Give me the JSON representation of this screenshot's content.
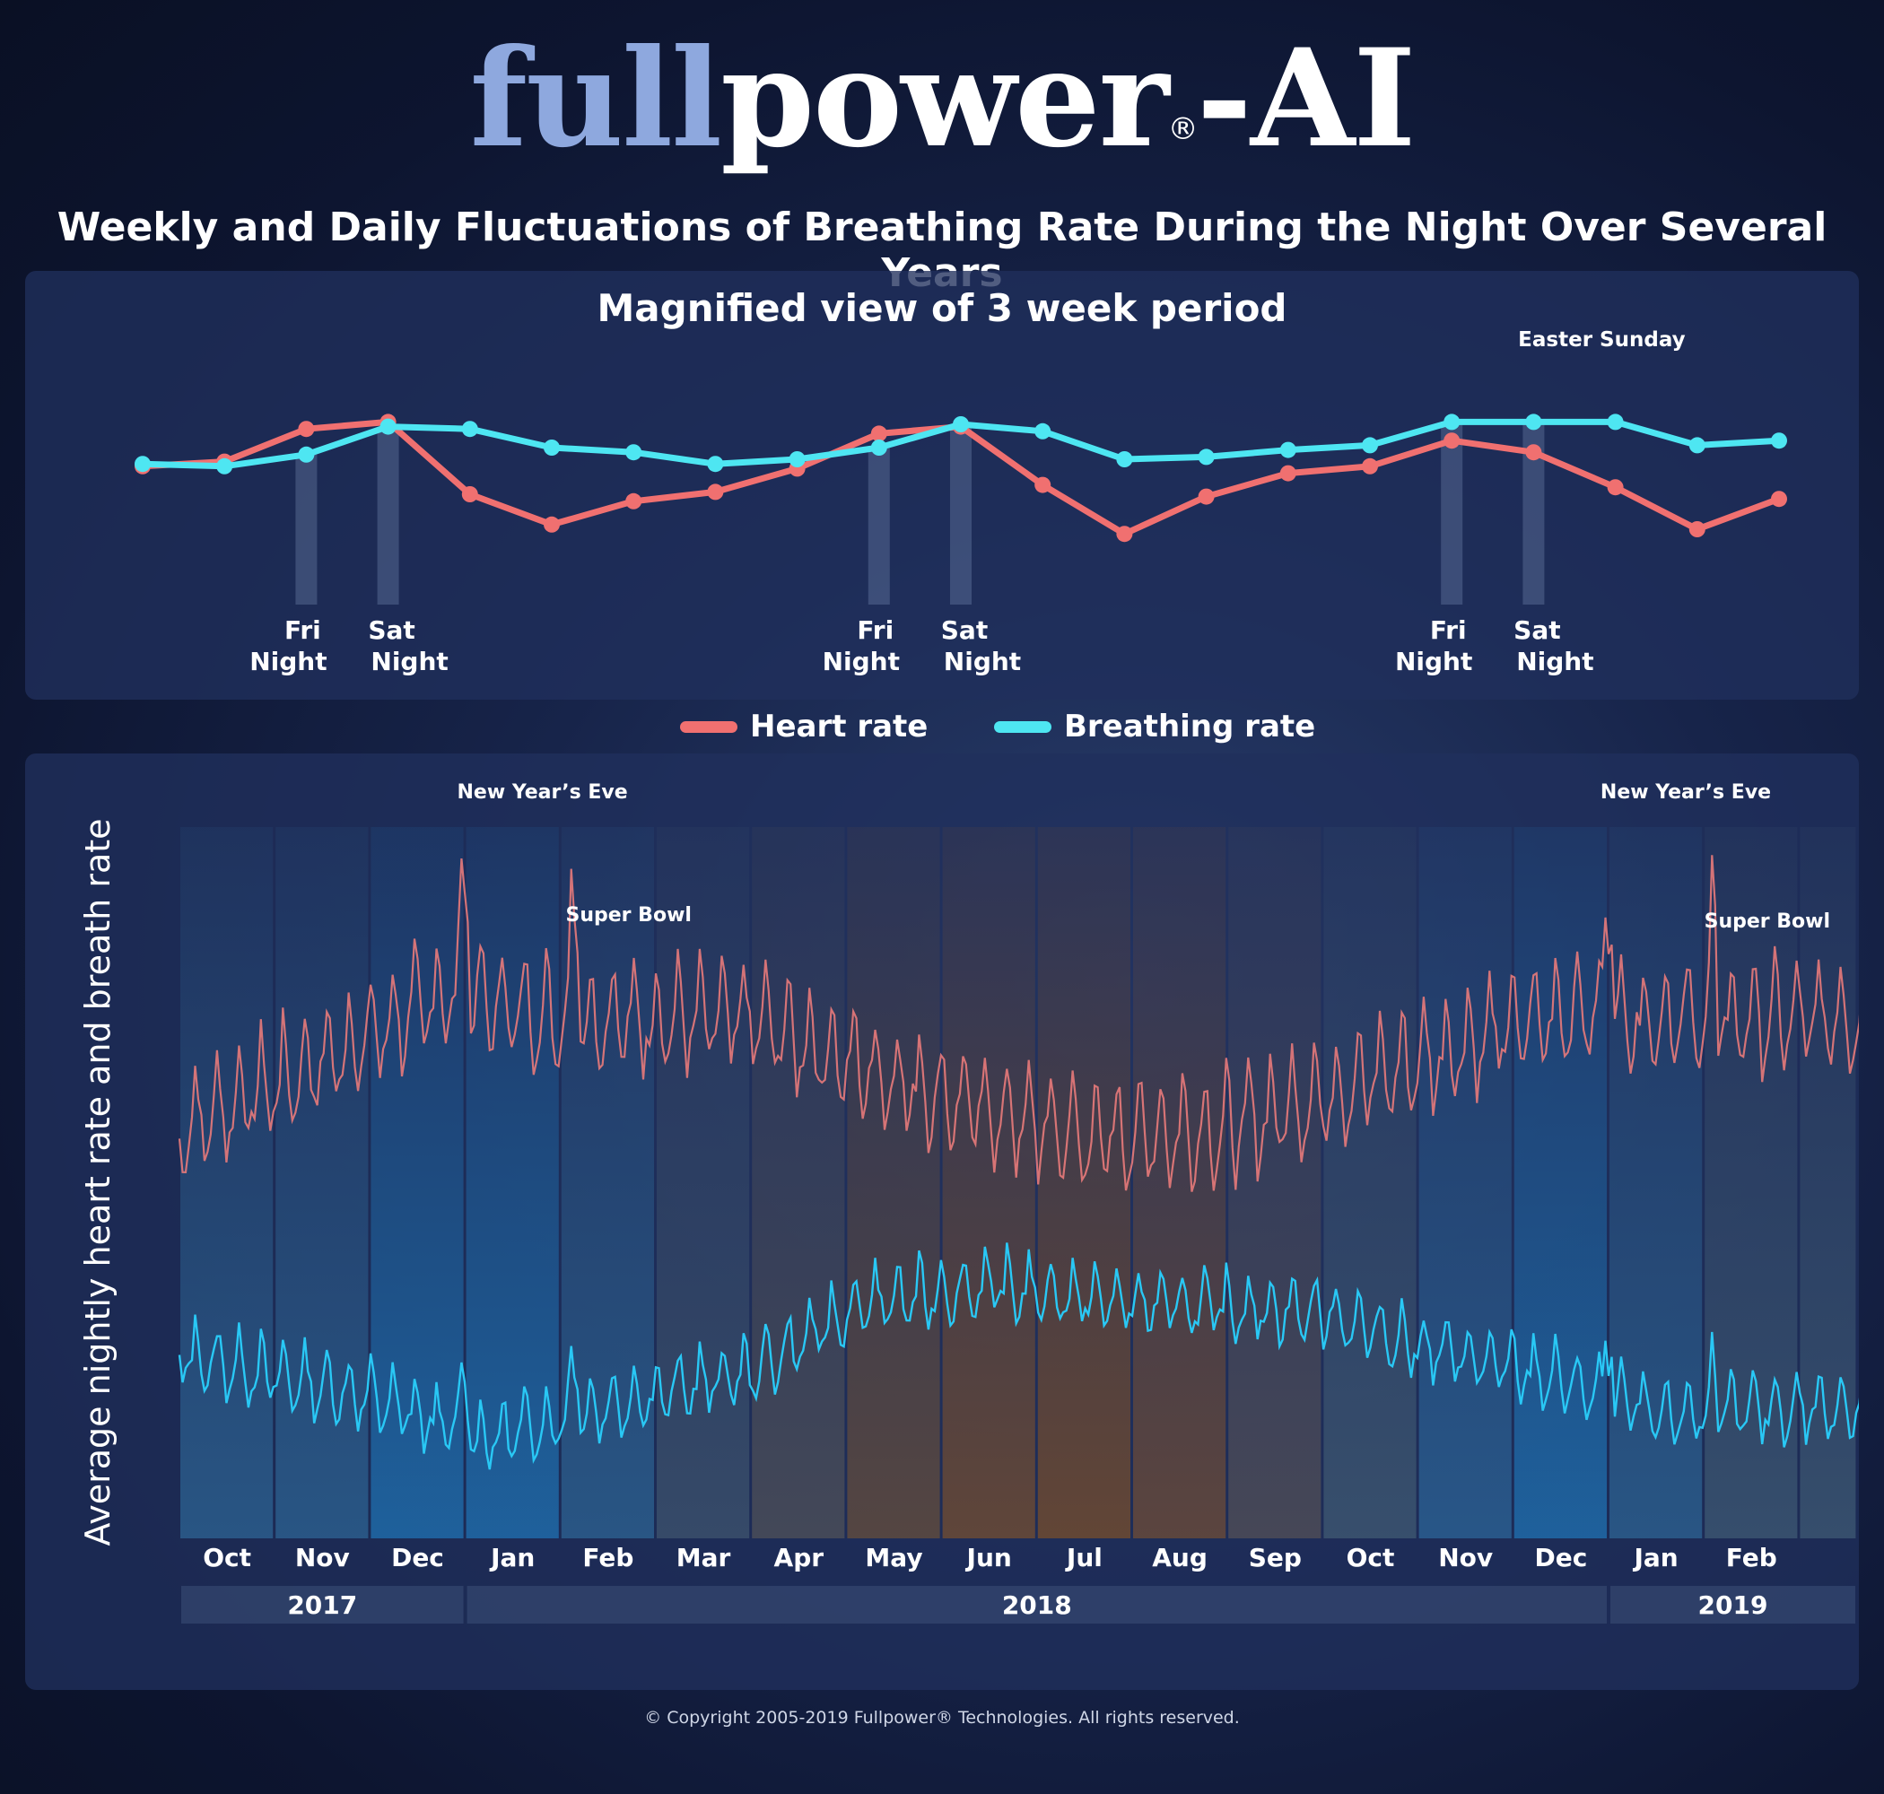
{
  "logo": {
    "part1": "full",
    "part2": "power",
    "reg": "®",
    "part3": "-AI"
  },
  "title": "Weekly and Daily Fluctuations of Breathing Rate During the Night Over Several Years",
  "legend": {
    "heart": "Heart rate",
    "breath": "Breathing rate"
  },
  "colors": {
    "heart": "#f07070",
    "breath": "#4ee6f2",
    "heart_dim": "#e87a7a",
    "breath_dim": "#29c8f5"
  },
  "copyright": "© Copyright 2005-2019 Fullpower® Technologies. All rights reserved.",
  "chart_data": [
    {
      "type": "line",
      "title": "Magnified view of 3 week period",
      "x": [
        1,
        2,
        3,
        4,
        5,
        6,
        7,
        8,
        9,
        10,
        11,
        12,
        13,
        14,
        15,
        16,
        17,
        18,
        19,
        20,
        21
      ],
      "series": [
        {
          "name": "Heart rate",
          "values": [
            47,
            49,
            63,
            66,
            35,
            22,
            32,
            36,
            46,
            61,
            64,
            39,
            18,
            34,
            44,
            47,
            58,
            53,
            38,
            20,
            33
          ]
        },
        {
          "name": "Breathing rate",
          "values": [
            48,
            47,
            52,
            64,
            63,
            55,
            53,
            48,
            50,
            55,
            65,
            62,
            50,
            51,
            54,
            56,
            66,
            66,
            66,
            56,
            58
          ]
        }
      ],
      "highlights": [
        {
          "x": 3,
          "label": [
            "Fri",
            "Night"
          ]
        },
        {
          "x": 4,
          "label": [
            "Sat",
            "Night"
          ]
        },
        {
          "x": 10,
          "label": [
            "Fri",
            "Night"
          ]
        },
        {
          "x": 11,
          "label": [
            "Sat",
            "Night"
          ]
        },
        {
          "x": 17,
          "label": [
            "Fri",
            "Night"
          ]
        },
        {
          "x": 18,
          "label": [
            "Sat",
            "Night"
          ]
        }
      ],
      "annotations": [
        {
          "x": 18,
          "text": "Easter Sunday"
        }
      ],
      "ylim": [
        0,
        100
      ]
    },
    {
      "type": "line",
      "ylabel": "Average nightly heart rate and breath rate",
      "months": [
        "Oct",
        "Nov",
        "Dec",
        "Jan",
        "Feb",
        "Mar",
        "Apr",
        "May",
        "Jun",
        "Jul",
        "Aug",
        "Sep",
        "Oct",
        "Nov",
        "Dec",
        "Jan",
        "Feb",
        ""
      ],
      "years": [
        {
          "label": "2017",
          "start_month": 0,
          "end_month": 3
        },
        {
          "label": "2018",
          "start_month": 3,
          "end_month": 15
        },
        {
          "label": "2019",
          "start_month": 15,
          "end_month": 18
        }
      ],
      "heart_trend": [
        {
          "month": 0,
          "value": 58
        },
        {
          "month": 1.5,
          "value": 66
        },
        {
          "month": 2.8,
          "value": 74
        },
        {
          "month": 4,
          "value": 71
        },
        {
          "month": 6,
          "value": 71
        },
        {
          "month": 7,
          "value": 66
        },
        {
          "month": 8.5,
          "value": 60
        },
        {
          "month": 9.5,
          "value": 57
        },
        {
          "month": 11,
          "value": 58
        },
        {
          "month": 12.5,
          "value": 64
        },
        {
          "month": 14.5,
          "value": 72
        },
        {
          "month": 15.5,
          "value": 71
        },
        {
          "month": 17.7,
          "value": 71
        }
      ],
      "breath_trend": [
        {
          "month": 0,
          "value": 32
        },
        {
          "month": 2,
          "value": 27
        },
        {
          "month": 3.2,
          "value": 22
        },
        {
          "month": 4.5,
          "value": 26
        },
        {
          "month": 6,
          "value": 30
        },
        {
          "month": 7.2,
          "value": 38
        },
        {
          "month": 8.5,
          "value": 40
        },
        {
          "month": 10,
          "value": 38
        },
        {
          "month": 12,
          "value": 37
        },
        {
          "month": 13,
          "value": 33
        },
        {
          "month": 14.5,
          "value": 29
        },
        {
          "month": 15.5,
          "value": 25
        },
        {
          "month": 17.7,
          "value": 26
        }
      ],
      "weekly_amplitude": {
        "heart": 8,
        "breath": 5
      },
      "annotations": [
        {
          "month": 3.0,
          "text": "New Year’s Eve"
        },
        {
          "month": 4.15,
          "text": "Super Bowl"
        },
        {
          "month": 15.0,
          "text": "New Year’s Eve"
        },
        {
          "month": 16.1,
          "text": "Super Bowl"
        }
      ],
      "ylim": [
        0,
        100
      ]
    }
  ]
}
